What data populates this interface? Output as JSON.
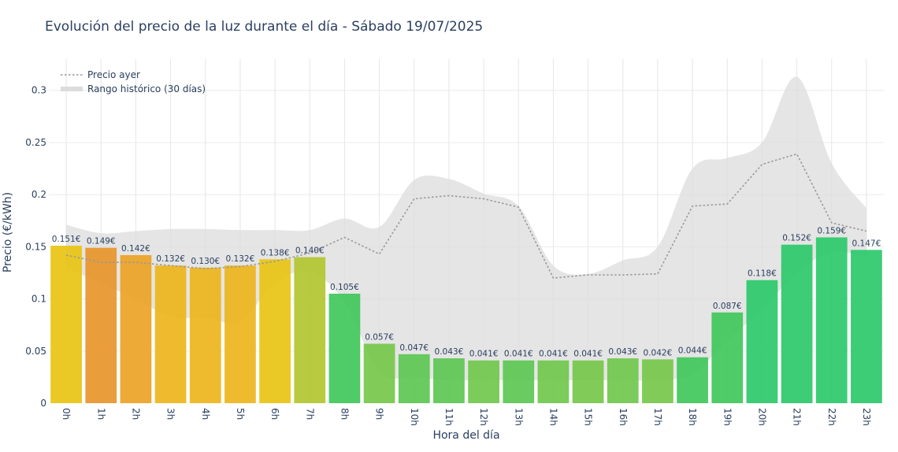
{
  "chart_data": {
    "type": "bar",
    "title": "Evolución del precio de la luz durante el día - Sábado 19/07/2025",
    "xlabel": "Hora del día",
    "ylabel": "Precio (€/kWh)",
    "ylim": [
      0,
      0.33
    ],
    "yticks": [
      0,
      0.05,
      0.1,
      0.15,
      0.2,
      0.25,
      0.3
    ],
    "ytick_labels": [
      "0",
      "0.05",
      "0.1",
      "0.15",
      "0.2",
      "0.25",
      "0.3"
    ],
    "grid": true,
    "legend_position": "top-left",
    "categories": [
      "0h",
      "1h",
      "2h",
      "3h",
      "4h",
      "5h",
      "6h",
      "7h",
      "8h",
      "9h",
      "10h",
      "11h",
      "12h",
      "13h",
      "14h",
      "15h",
      "16h",
      "17h",
      "18h",
      "19h",
      "20h",
      "21h",
      "22h",
      "23h"
    ],
    "series": [
      {
        "values": [
          0.151,
          0.149,
          0.142,
          0.132,
          0.13,
          0.132,
          0.138,
          0.14,
          0.105,
          0.057,
          0.047,
          0.043,
          0.041,
          0.041,
          0.041,
          0.041,
          0.043,
          0.042,
          0.044,
          0.087,
          0.118,
          0.152,
          0.159,
          0.147
        ],
        "labels": [
          "0.151€",
          "0.149€",
          "0.142€",
          "0.132€",
          "0.130€",
          "0.132€",
          "0.138€",
          "0.140€",
          "0.105€",
          "0.057€",
          "0.047€",
          "0.043€",
          "0.041€",
          "0.041€",
          "0.041€",
          "0.041€",
          "0.043€",
          "0.042€",
          "0.044€",
          "0.087€",
          "0.118€",
          "0.152€",
          "0.159€",
          "0.147€"
        ],
        "colors": [
          "#e8c414",
          "#e8952a",
          "#eda325",
          "#eeb51c",
          "#eeb51c",
          "#eeb51c",
          "#e8c414",
          "#b2c62f",
          "#40c75a",
          "#76c84a",
          "#5cc752",
          "#5cc752",
          "#70c84c",
          "#5cc752",
          "#70c84c",
          "#76c84a",
          "#70c84c",
          "#76c84a",
          "#40c75a",
          "#40c75a",
          "#2bc96a",
          "#2bc96a",
          "#2bc96a",
          "#2bc96a"
        ]
      },
      {
        "name": "Precio ayer",
        "type": "line",
        "style": "dotted",
        "color": "#999999",
        "values": [
          0.142,
          0.135,
          0.135,
          0.132,
          0.129,
          0.131,
          0.136,
          0.144,
          0.159,
          0.143,
          0.196,
          0.199,
          0.196,
          0.188,
          0.12,
          0.123,
          0.123,
          0.124,
          0.189,
          0.191,
          0.229,
          0.239,
          0.173,
          0.165
        ]
      },
      {
        "name": "Rango histórico (30 días)",
        "type": "area-band",
        "color": "#dcdcdc",
        "upper": [
          0.171,
          0.163,
          0.165,
          0.167,
          0.167,
          0.166,
          0.166,
          0.166,
          0.177,
          0.169,
          0.214,
          0.215,
          0.201,
          0.189,
          0.132,
          0.124,
          0.137,
          0.15,
          0.225,
          0.235,
          0.25,
          0.313,
          0.23,
          0.187
        ],
        "lower": [
          0.13,
          0.115,
          0.1,
          0.083,
          0.082,
          0.078,
          0.115,
          0.126,
          0.097,
          0.03,
          0.025,
          0.022,
          0.022,
          0.022,
          0.022,
          0.022,
          0.022,
          0.022,
          0.028,
          0.06,
          0.09,
          0.125,
          0.145,
          0.14
        ]
      }
    ]
  }
}
